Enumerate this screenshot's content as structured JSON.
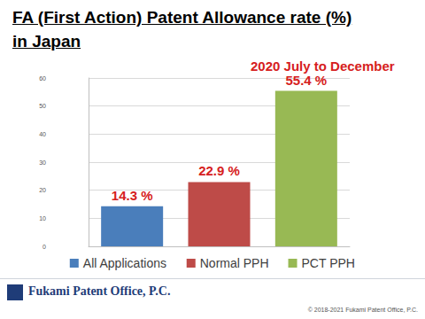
{
  "chart_data": {
    "type": "bar",
    "title": "FA (First Action) Patent Allowance rate (%)\n in Japan",
    "subtitle": "2020 July to December",
    "categories": [
      "All Applications",
      "Normal PPH",
      "PCT PPH"
    ],
    "values": [
      14.3,
      22.9,
      55.4
    ],
    "value_labels": [
      "14.3 %",
      "22.9 %",
      "55.4 %"
    ],
    "colors": [
      "#4a7ebb",
      "#be4b48",
      "#98b954"
    ],
    "ylim": [
      0,
      60
    ],
    "yticks": [
      0,
      10,
      20,
      30,
      40,
      50,
      60
    ],
    "grid": true,
    "legend": "bottom",
    "data_labels": true,
    "tick_labels": "y"
  },
  "footer": {
    "company": "Fukami Patent Office, P.C.",
    "copyright": "© 2018-2021 Fukami Patent Office, P.C."
  }
}
